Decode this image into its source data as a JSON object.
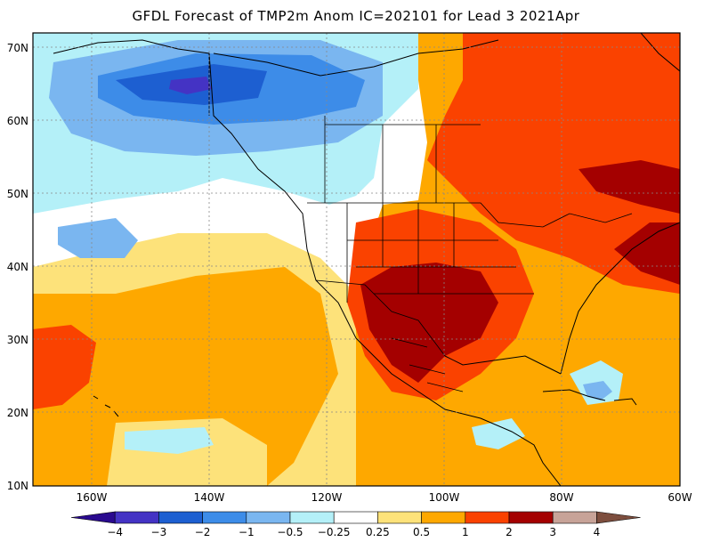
{
  "title": "GFDL Forecast of TMP2m Anom IC=202101 for Lead 3 2021Apr",
  "lat_labels": [
    "70N",
    "60N",
    "50N",
    "40N",
    "30N",
    "20N",
    "10N"
  ],
  "lon_labels": [
    "160W",
    "140W",
    "120W",
    "100W",
    "80W",
    "60W"
  ],
  "colorbar": {
    "tick_labels": [
      "-4",
      "-3",
      "-2",
      "-1",
      "-0.5",
      "-0.25",
      "0.25",
      "0.5",
      "1",
      "2",
      "3",
      "4"
    ],
    "colors": [
      "#2a0a8f",
      "#4433c4",
      "#1d5fd1",
      "#3d8ce8",
      "#7ab6f0",
      "#b4f0f8",
      "#ffffff",
      "#fde27a",
      "#fea800",
      "#fa4200",
      "#a40000",
      "#c7a398",
      "#7d4e3e"
    ]
  },
  "map": {
    "lon_range": [
      "170W",
      "60W"
    ],
    "lat_range": [
      "10N",
      "72N"
    ],
    "background_color": "#ffffff",
    "colors": {
      "land_outline": "#000000",
      "grid": "#888888"
    }
  }
}
